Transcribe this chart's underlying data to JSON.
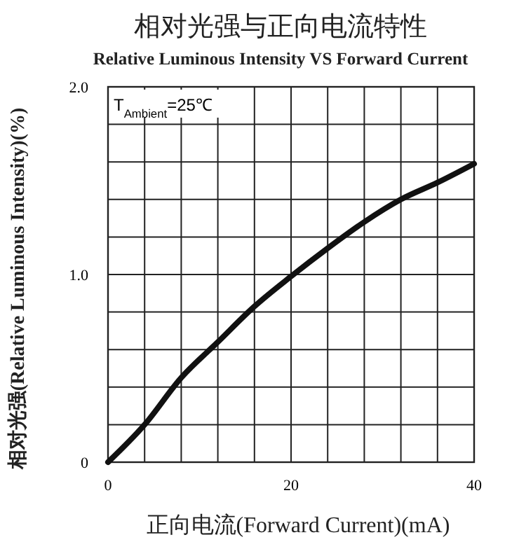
{
  "chart_data": {
    "type": "line",
    "title": "相对光强与正向电流特性",
    "subtitle": "Relative Luminous Intensity VS Forward Current",
    "xlabel": "正向电流(Forward Current)(mA)",
    "ylabel": "相对光强(Relative Luminous Intensity)(%)",
    "x": [
      0,
      4,
      8,
      12,
      16,
      20,
      24,
      28,
      32,
      36,
      40
    ],
    "series": [
      {
        "color": "#111111",
        "values": [
          0,
          0.2,
          0.45,
          0.64,
          0.83,
          0.99,
          1.14,
          1.28,
          1.4,
          1.49,
          1.59
        ]
      }
    ],
    "xlim": [
      0,
      40
    ],
    "xticks": [
      0,
      {
        "value": 4,
        "label": null
      },
      {
        "value": 8,
        "label": null
      },
      {
        "value": 12,
        "label": null
      },
      {
        "value": 16,
        "label": null
      },
      20,
      {
        "value": 24,
        "label": null
      },
      {
        "value": 28,
        "label": null
      },
      {
        "value": 32,
        "label": null
      },
      {
        "value": 36,
        "label": null
      },
      40
    ],
    "ylim": [
      0,
      2
    ],
    "yticks": [
      0,
      {
        "value": 0.2,
        "label": null
      },
      {
        "value": 0.4,
        "label": null
      },
      {
        "value": 0.6,
        "label": null
      },
      {
        "value": 0.8,
        "label": null
      },
      {
        "value": 1,
        "label": "1.0"
      },
      {
        "value": 1.2,
        "label": null
      },
      {
        "value": 1.4,
        "label": null
      },
      {
        "value": 1.6,
        "label": null
      },
      {
        "value": 1.8,
        "label": null
      },
      {
        "value": 2,
        "label": "2.0"
      }
    ],
    "grid": true,
    "marker": "none",
    "line_style": "solid",
    "annotations": [
      "T$_{Ambient}$=25℃"
    ]
  }
}
